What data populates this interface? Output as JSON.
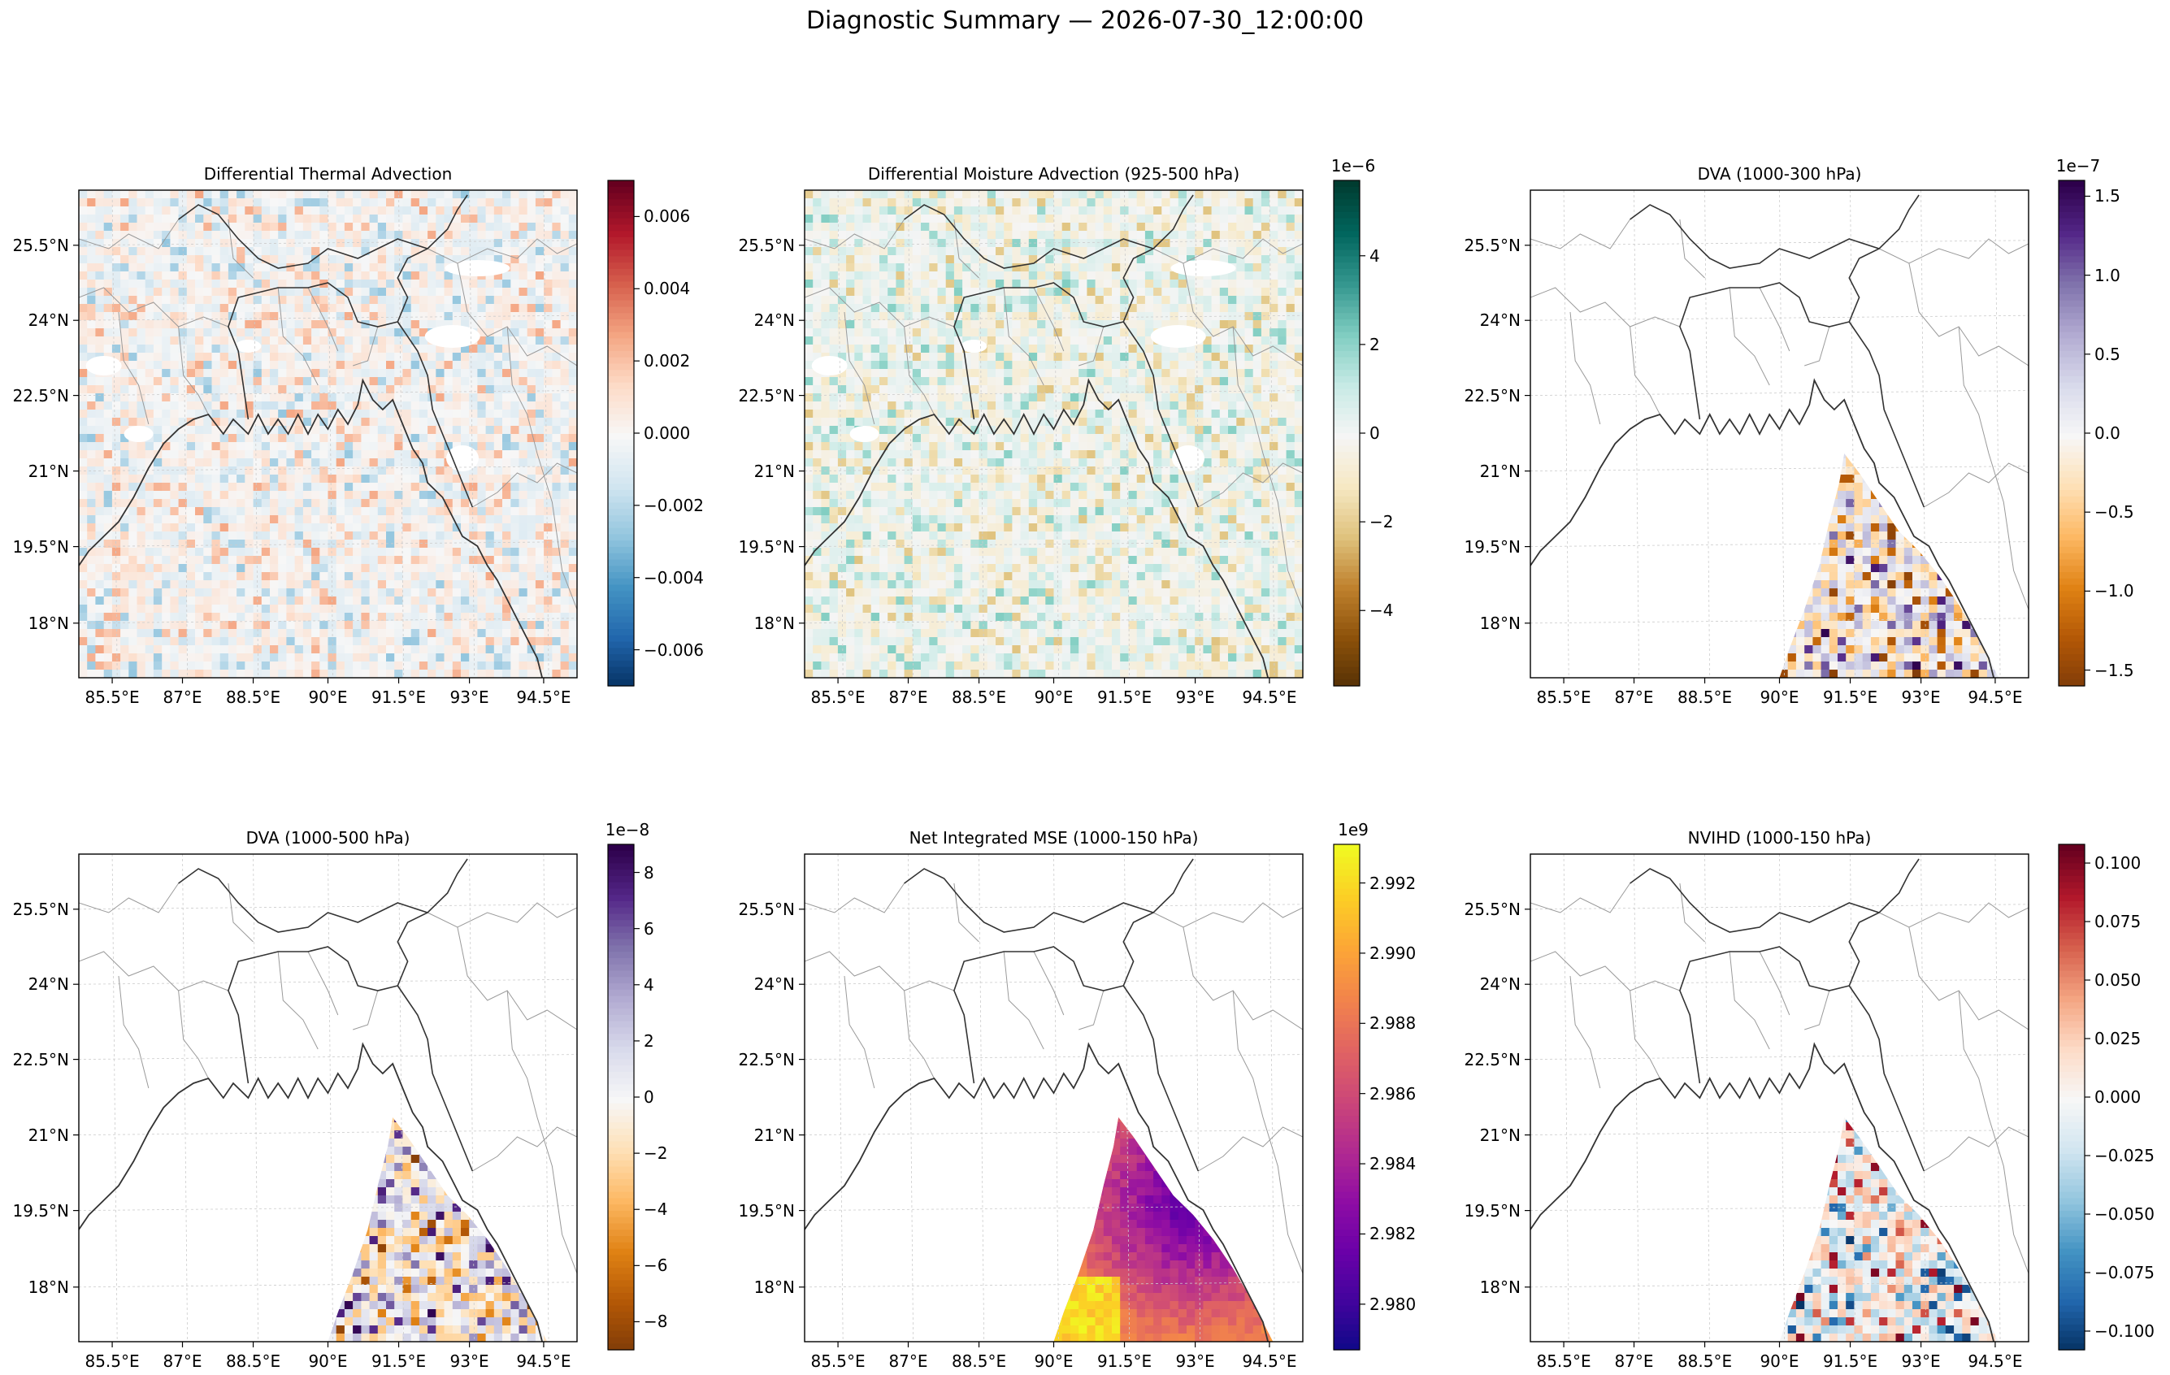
{
  "title": "Diagnostic Summary — 2026-07-30_12:00:00",
  "colors": {
    "land_border": "#333333",
    "admin_border": "#9a9a9a",
    "grid": "#cccccc"
  },
  "chart_data": [
    {
      "type": "heatmap",
      "title": "Differential Thermal Advection",
      "colormap": "RdBu_r",
      "field_region": "full",
      "x_ticks": [
        "85.5°E",
        "87°E",
        "88.5°E",
        "90°E",
        "91.5°E",
        "93°E",
        "94.5°E"
      ],
      "y_ticks": [
        "25.5°N",
        "24°N",
        "22.5°N",
        "21°N",
        "19.5°N",
        "18°N"
      ],
      "xlim": [
        84,
        94.6
      ],
      "ylim": [
        17,
        26.6
      ],
      "colorbar": {
        "vmin": -0.007,
        "vmax": 0.007,
        "exponent": "",
        "ticks": [
          -0.006,
          -0.004,
          -0.002,
          0,
          0.002,
          0.004,
          0.006
        ],
        "tick_labels": [
          "−0.006",
          "−0.004",
          "−0.002",
          "0.000",
          "0.002",
          "0.004",
          "0.006"
        ]
      }
    },
    {
      "type": "heatmap",
      "title": "Differential Moisture Advection (925-500 hPa)",
      "colormap": "BrBG",
      "field_region": "full",
      "x_ticks": [
        "85.5°E",
        "87°E",
        "88.5°E",
        "90°E",
        "91.5°E",
        "93°E",
        "94.5°E"
      ],
      "y_ticks": [
        "25.5°N",
        "24°N",
        "22.5°N",
        "21°N",
        "19.5°N",
        "18°N"
      ],
      "xlim": [
        84,
        94.6
      ],
      "ylim": [
        17,
        26.6
      ],
      "colorbar": {
        "vmin": -5.7,
        "vmax": 5.7,
        "exponent": "1e−6",
        "ticks": [
          -4,
          -2,
          0,
          2,
          4
        ],
        "tick_labels": [
          "−4",
          "−2",
          "0",
          "2",
          "4"
        ]
      }
    },
    {
      "type": "heatmap",
      "title": "DVA (1000-300 hPa)",
      "colormap": "PuOr",
      "field_region": "sea-south",
      "x_ticks": [
        "85.5°E",
        "87°E",
        "88.5°E",
        "90°E",
        "91.5°E",
        "93°E",
        "94.5°E"
      ],
      "y_ticks": [
        "25.5°N",
        "24°N",
        "22.5°N",
        "21°N",
        "19.5°N",
        "18°N"
      ],
      "xlim": [
        84,
        94.6
      ],
      "ylim": [
        17,
        26.6
      ],
      "colorbar": {
        "vmin": -1.6,
        "vmax": 1.6,
        "exponent": "1e−7",
        "ticks": [
          -1.5,
          -1,
          -0.5,
          0,
          0.5,
          1,
          1.5
        ],
        "tick_labels": [
          "−1.5",
          "−1.0",
          "−0.5",
          "0.0",
          "0.5",
          "1.0",
          "1.5"
        ]
      }
    },
    {
      "type": "heatmap",
      "title": "DVA (1000-500 hPa)",
      "colormap": "PuOr",
      "field_region": "sea-south",
      "x_ticks": [
        "85.5°E",
        "87°E",
        "88.5°E",
        "90°E",
        "91.5°E",
        "93°E",
        "94.5°E"
      ],
      "y_ticks": [
        "25.5°N",
        "24°N",
        "22.5°N",
        "21°N",
        "19.5°N",
        "18°N"
      ],
      "xlim": [
        84,
        94.6
      ],
      "ylim": [
        17,
        26.6
      ],
      "colorbar": {
        "vmin": -9,
        "vmax": 9,
        "exponent": "1e−8",
        "ticks": [
          -8,
          -6,
          -4,
          -2,
          0,
          2,
          4,
          6,
          8
        ],
        "tick_labels": [
          "−8",
          "−6",
          "−4",
          "−2",
          "0",
          "2",
          "4",
          "6",
          "8"
        ]
      }
    },
    {
      "type": "heatmap",
      "title": "Net Integrated MSE (1000-150 hPa)",
      "colormap": "plasma",
      "field_region": "sea-south",
      "x_ticks": [
        "85.5°E",
        "87°E",
        "88.5°E",
        "90°E",
        "91.5°E",
        "93°E",
        "94.5°E"
      ],
      "y_ticks": [
        "25.5°N",
        "24°N",
        "22.5°N",
        "21°N",
        "19.5°N",
        "18°N"
      ],
      "xlim": [
        84,
        94.6
      ],
      "ylim": [
        17,
        26.6
      ],
      "colorbar": {
        "vmin": 2.9787,
        "vmax": 2.9931,
        "exponent": "1e9",
        "ticks": [
          2.98,
          2.982,
          2.984,
          2.986,
          2.988,
          2.99,
          2.992
        ],
        "tick_labels": [
          "2.980",
          "2.982",
          "2.984",
          "2.986",
          "2.988",
          "2.990",
          "2.992"
        ]
      }
    },
    {
      "type": "heatmap",
      "title": "NVIHD (1000-150 hPa)",
      "colormap": "RdBu_r",
      "field_region": "sea-south",
      "x_ticks": [
        "85.5°E",
        "87°E",
        "88.5°E",
        "90°E",
        "91.5°E",
        "93°E",
        "94.5°E"
      ],
      "y_ticks": [
        "25.5°N",
        "24°N",
        "22.5°N",
        "21°N",
        "19.5°N",
        "18°N"
      ],
      "xlim": [
        84,
        94.6
      ],
      "ylim": [
        17,
        26.6
      ],
      "colorbar": {
        "vmin": -0.108,
        "vmax": 0.108,
        "exponent": "",
        "ticks": [
          -0.1,
          -0.075,
          -0.05,
          -0.025,
          0,
          0.025,
          0.05,
          0.075,
          0.1
        ],
        "tick_labels": [
          "−0.100",
          "−0.075",
          "−0.050",
          "−0.025",
          "0.000",
          "0.025",
          "0.050",
          "0.075",
          "0.100"
        ]
      }
    }
  ]
}
